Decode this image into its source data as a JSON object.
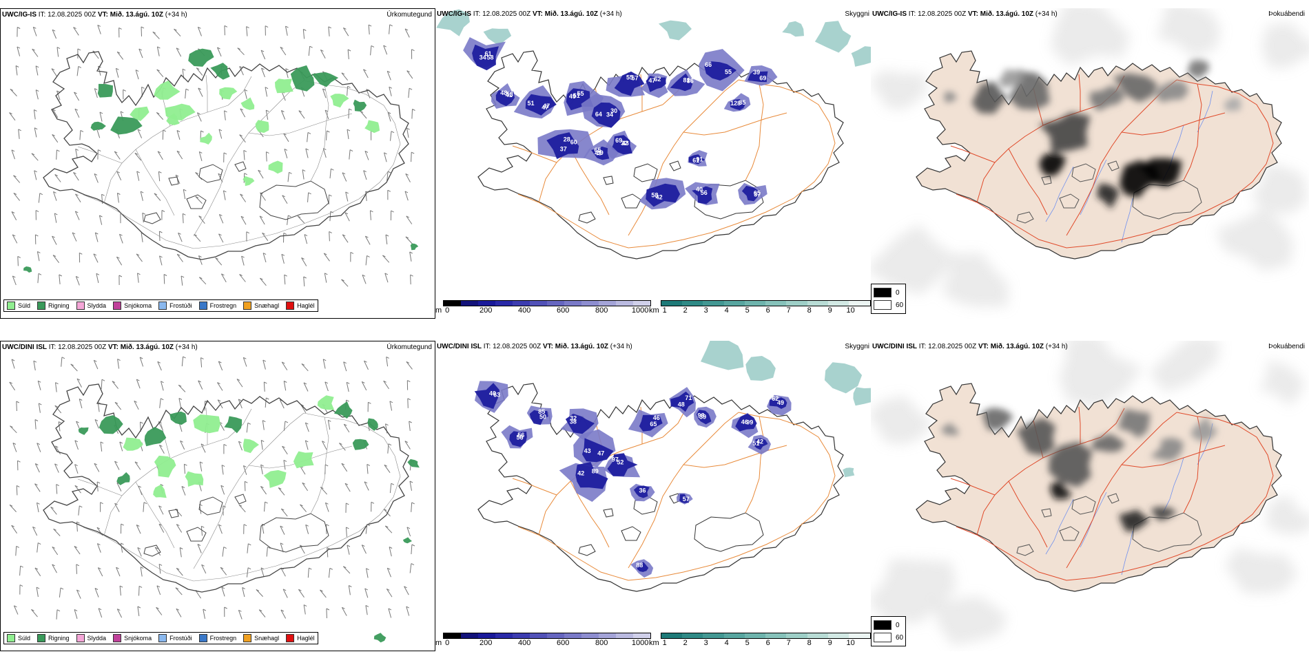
{
  "rows": [
    {
      "model": "UWC/IG-IS",
      "it_label": "IT:",
      "it_value": "12.08.2025 00Z",
      "vt_label": "VT:",
      "vt_value": "Mið. 13.ágú. 10Z",
      "lead": "(+34 h)"
    },
    {
      "model": "UWC/DINI ISL",
      "it_label": "IT:",
      "it_value": "12.08.2025 00Z",
      "vt_label": "VT:",
      "vt_value": "Mið. 13.ágú. 10Z",
      "lead": "(+34 h)"
    }
  ],
  "panel_titles": {
    "precip": "Úrkomutegund",
    "cloud": "Skyggni",
    "fog": "Þokuábendi"
  },
  "precip_legend": [
    {
      "label": "Súld",
      "color": "#90ee90"
    },
    {
      "label": "Rigning",
      "color": "#3a9a5a"
    },
    {
      "label": "Slydda",
      "color": "#f4a6d7"
    },
    {
      "label": "Snjókoma",
      "color": "#c0409a"
    },
    {
      "label": "Frostúði",
      "color": "#8ab8ee"
    },
    {
      "label": "Frostregn",
      "color": "#3a78c8"
    },
    {
      "label": "Snæhagl",
      "color": "#f0a020"
    },
    {
      "label": "Haglél",
      "color": "#e01010"
    }
  ],
  "cloud_base_scale": {
    "unit": "m",
    "ticks": [
      "0",
      "200",
      "400",
      "600",
      "800",
      "1000"
    ],
    "colors": [
      "#000000",
      "#12127a",
      "#1a1a9a",
      "#2a2aa8",
      "#3c3cb0",
      "#5252b8",
      "#6666c0",
      "#7a7ac8",
      "#8e8ed0",
      "#a4a4d8",
      "#babae0",
      "#d0d0ea"
    ]
  },
  "visibility_scale": {
    "unit": "km",
    "ticks": [
      "1",
      "2",
      "3",
      "4",
      "5",
      "6",
      "7",
      "8",
      "9",
      "10"
    ],
    "colors": [
      "#1e7a78",
      "#2f8a86",
      "#439893",
      "#58a6a0",
      "#6eb4ad",
      "#86c2ba",
      "#9ecfc7",
      "#b8dcd5",
      "#d2e9e4",
      "#ecf5f3"
    ]
  },
  "fog_legend": [
    {
      "label": "0",
      "color": "#000000"
    },
    {
      "label": "60",
      "color": "#ffffff"
    }
  ],
  "cloud_labels_top": [
    "58",
    "53",
    "47",
    "55",
    "64",
    "69",
    "60",
    "43",
    "57",
    "47",
    "86",
    "66",
    "85",
    "61",
    "58",
    "40",
    "37",
    "39",
    "34",
    "41",
    "51",
    "49",
    "34",
    "32",
    "37",
    "59",
    "55",
    "62",
    "81",
    "55",
    "128",
    "91",
    "42",
    "56",
    "65",
    "69",
    "61",
    "48",
    "47",
    "51",
    "30",
    "43",
    "28",
    "65"
  ],
  "cloud_labels_bottom": [
    "63",
    "56",
    "50",
    "32",
    "47",
    "89",
    "52",
    "46",
    "48",
    "39",
    "46",
    "49",
    "51",
    "36",
    "57",
    "88",
    "40",
    "56",
    "85",
    "38",
    "43",
    "42",
    "97",
    "65",
    "71",
    "98",
    "99",
    "62",
    "42"
  ]
}
